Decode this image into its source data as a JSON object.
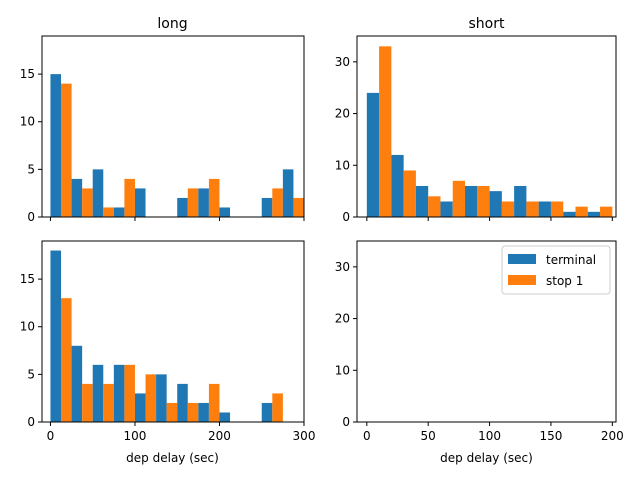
{
  "colors": {
    "terminal": "#1f77b4",
    "stop1": "#ff7f0e"
  },
  "chart_data": [
    {
      "type": "bar",
      "title": "long",
      "xlabel": "",
      "ylabel": "",
      "bin_width": 25,
      "bin_starts": [
        0,
        25,
        50,
        75,
        100,
        125,
        150,
        175,
        200,
        225,
        250,
        275
      ],
      "xlim": [
        -10,
        300
      ],
      "ylim": [
        0,
        19
      ],
      "xticks": [],
      "yticks": [
        0,
        5,
        10,
        15
      ],
      "series": [
        {
          "name": "terminal",
          "values": [
            15,
            4,
            5,
            1,
            3,
            0,
            2,
            3,
            1,
            0,
            2,
            5
          ]
        },
        {
          "name": "stop 1",
          "values": [
            14,
            3,
            1,
            4,
            0,
            0,
            3,
            4,
            0,
            0,
            3,
            2
          ]
        }
      ]
    },
    {
      "type": "bar",
      "title": "short",
      "xlabel": "",
      "ylabel": "",
      "bin_width": 20,
      "bin_starts": [
        0,
        20,
        40,
        60,
        80,
        100,
        120,
        140,
        160,
        180
      ],
      "xlim": [
        -8,
        203
      ],
      "ylim": [
        0,
        35
      ],
      "xticks": [],
      "yticks": [
        0,
        10,
        20,
        30
      ],
      "series": [
        {
          "name": "terminal",
          "values": [
            24,
            12,
            6,
            3,
            6,
            5,
            6,
            3,
            1,
            1
          ]
        },
        {
          "name": "stop 1",
          "values": [
            33,
            9,
            4,
            7,
            6,
            3,
            3,
            3,
            2,
            2
          ]
        }
      ]
    },
    {
      "type": "bar",
      "title": "",
      "xlabel": "dep delay (sec)",
      "ylabel": "",
      "bin_width": 25,
      "bin_starts": [
        0,
        25,
        50,
        75,
        100,
        125,
        150,
        175,
        200,
        225,
        250,
        275
      ],
      "xlim": [
        -10,
        300
      ],
      "ylim": [
        0,
        19
      ],
      "xticks": [
        0,
        100,
        200,
        300
      ],
      "yticks": [
        0,
        5,
        10,
        15
      ],
      "series": [
        {
          "name": "terminal",
          "values": [
            18,
            8,
            6,
            6,
            3,
            5,
            4,
            2,
            1,
            0,
            2,
            0
          ]
        },
        {
          "name": "stop 1",
          "values": [
            13,
            4,
            4,
            6,
            5,
            2,
            2,
            4,
            0,
            0,
            3,
            0
          ]
        }
      ]
    },
    {
      "type": "bar",
      "title": "",
      "xlabel": "dep delay (sec)",
      "ylabel": "",
      "bin_width": 20,
      "bin_starts": [],
      "xlim": [
        -8,
        203
      ],
      "ylim": [
        0,
        35
      ],
      "xticks": [
        0,
        50,
        100,
        150,
        200
      ],
      "yticks": [
        0,
        10,
        20,
        30
      ],
      "series": [
        {
          "name": "terminal",
          "values": []
        },
        {
          "name": "stop 1",
          "values": []
        }
      ],
      "legend": {
        "position": "upper right",
        "entries": [
          "terminal",
          "stop 1"
        ]
      }
    }
  ]
}
